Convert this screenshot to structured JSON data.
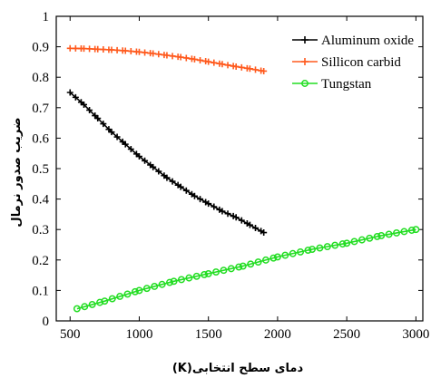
{
  "chart_data": {
    "type": "line",
    "title": "",
    "xlabel": "دمای سطح انتخابی(K)",
    "ylabel": "ضریب صدور نرمال",
    "xlim": [
      400,
      3050
    ],
    "ylim": [
      0,
      1
    ],
    "xticks": [
      500,
      1000,
      1500,
      2000,
      2500,
      3000
    ],
    "yticks": [
      0,
      0.1,
      0.2,
      0.3,
      0.4,
      0.5,
      0.6,
      0.7,
      0.8,
      0.9,
      1
    ],
    "grid": false,
    "legend_position": "top-right",
    "series": [
      {
        "name": "Aluminum oxide",
        "color": "#000000",
        "marker": "plus",
        "x": [
          500,
          600,
          700,
          800,
          900,
          1000,
          1100,
          1200,
          1300,
          1400,
          1500,
          1600,
          1700,
          1800,
          1900
        ],
        "y": [
          0.75,
          0.71,
          0.665,
          0.62,
          0.58,
          0.54,
          0.505,
          0.47,
          0.44,
          0.41,
          0.385,
          0.36,
          0.34,
          0.315,
          0.29
        ]
      },
      {
        "name": "Sillicon carbid",
        "color": "#ff5a1e",
        "marker": "plus",
        "x": [
          500,
          600,
          700,
          800,
          900,
          1000,
          1100,
          1200,
          1300,
          1400,
          1500,
          1600,
          1700,
          1800,
          1900
        ],
        "y": [
          0.895,
          0.894,
          0.892,
          0.89,
          0.887,
          0.883,
          0.878,
          0.872,
          0.866,
          0.859,
          0.851,
          0.843,
          0.835,
          0.828,
          0.82
        ]
      },
      {
        "name": "Tungstan",
        "color": "#22dd22",
        "marker": "circle",
        "x": [
          550,
          750,
          1000,
          1250,
          1500,
          1750,
          2000,
          2250,
          2500,
          2750,
          3000
        ],
        "y": [
          0.04,
          0.065,
          0.1,
          0.13,
          0.155,
          0.18,
          0.21,
          0.235,
          0.255,
          0.28,
          0.3
        ]
      }
    ]
  }
}
